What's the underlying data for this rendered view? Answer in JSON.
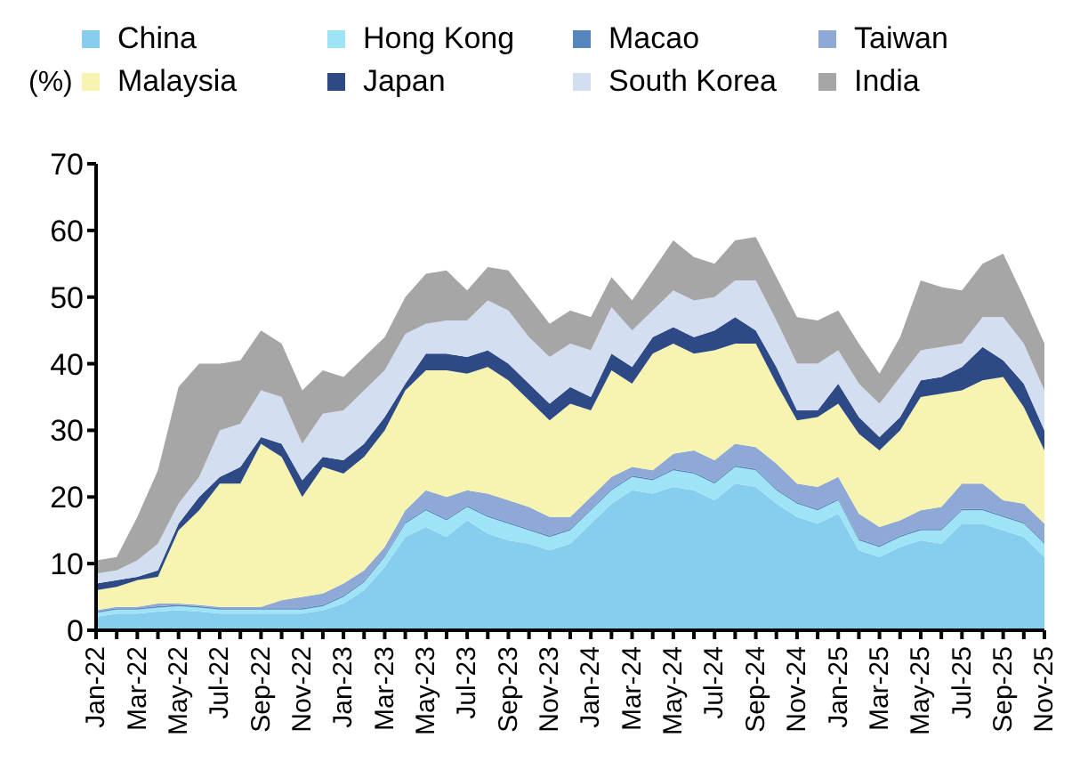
{
  "chart_data": {
    "type": "area",
    "stacked": true,
    "ylabel": "(%)",
    "categories": [
      "Jan-22",
      null,
      "Mar-22",
      null,
      "May-22",
      null,
      "Jul-22",
      null,
      "Sep-22",
      null,
      "Nov-22",
      null,
      "Jan-23",
      null,
      "Mar-23",
      null,
      "May-23",
      null,
      "Jul-23",
      null,
      "Sep-23",
      null,
      "Nov-23",
      null,
      "Jan-24",
      null,
      "Mar-24",
      null,
      "May-24",
      null,
      "Jul-24",
      null,
      "Sep-24",
      null,
      "Nov-24",
      null,
      "Jan-25",
      null,
      "Mar-25",
      null,
      "May-25",
      null,
      "Jul-25",
      null,
      "Sep-25",
      null,
      "Nov-25"
    ],
    "ylim": [
      0,
      70
    ],
    "yticks": [
      0,
      10,
      20,
      30,
      40,
      50,
      60,
      70
    ],
    "grid": false,
    "legend": "top",
    "series": [
      {
        "name": "China",
        "color": "#87ceee",
        "values": [
          2,
          2.5,
          2.5,
          2.8,
          3,
          2.8,
          2.5,
          2.5,
          2.5,
          2.5,
          2.5,
          3,
          4,
          6,
          9.5,
          14,
          15.5,
          14,
          16.5,
          14.5,
          13.5,
          13,
          12,
          13,
          16,
          19,
          21,
          20.5,
          21.5,
          21,
          19.5,
          22,
          21.5,
          19,
          17,
          16,
          17.5,
          12,
          11,
          12.5,
          13.5,
          13,
          16,
          16,
          15,
          14,
          11
        ]
      },
      {
        "name": "Hong Kong",
        "color": "#9fe3f7",
        "values": [
          0.6,
          0.6,
          0.6,
          0.6,
          0.6,
          0.6,
          0.6,
          0.6,
          0.6,
          0.6,
          0.6,
          0.6,
          1,
          1.2,
          1.5,
          2,
          2.5,
          2.5,
          2,
          2.5,
          2.5,
          2,
          2,
          2,
          2,
          2,
          2,
          2,
          2.5,
          2.5,
          2.5,
          2.5,
          2.5,
          2,
          2,
          2,
          2,
          1.5,
          1.5,
          1.5,
          1.5,
          2,
          2,
          2,
          2,
          2,
          2
        ]
      },
      {
        "name": "Macao",
        "color": "#5585bd",
        "values": [
          0.2,
          0.2,
          0.2,
          0.2,
          0.2,
          0.2,
          0.2,
          0.2,
          0.2,
          0.2,
          0.2,
          0.2,
          0.2,
          0.2,
          0.2,
          0.2,
          0.2,
          0.2,
          0.2,
          0.2,
          0.2,
          0.2,
          0.2,
          0.2,
          0.2,
          0.2,
          0.2,
          0.2,
          0.2,
          0.2,
          0.2,
          0.2,
          0.2,
          0.2,
          0.2,
          0.2,
          0.2,
          0.2,
          0.2,
          0.2,
          0.2,
          0.2,
          0.2,
          0.2,
          0.2,
          0.2,
          0.2
        ]
      },
      {
        "name": "Taiwan",
        "color": "#8fa9d6",
        "values": [
          0.2,
          0.2,
          0.2,
          0.4,
          0.2,
          0.2,
          0.2,
          0.2,
          0.2,
          1.2,
          1.7,
          1.7,
          1.8,
          1.6,
          1.3,
          1.8,
          2.8,
          3.3,
          2.3,
          3.3,
          3.3,
          3.3,
          2.8,
          1.8,
          1.8,
          1.8,
          1.3,
          1.3,
          2.3,
          3.3,
          3.3,
          3.3,
          3.3,
          3.8,
          2.8,
          3.3,
          3.3,
          3.8,
          2.8,
          2.3,
          2.8,
          3.3,
          3.8,
          3.8,
          2.3,
          2.8,
          2.8
        ]
      },
      {
        "name": "Malaysia",
        "color": "#f7f3b0",
        "values": [
          3,
          3,
          4,
          4,
          11,
          14.2,
          18.5,
          18.5,
          24.5,
          21.5,
          15,
          19,
          16.5,
          17,
          17.5,
          18,
          18,
          19,
          17.5,
          19,
          18,
          16,
          14.5,
          17,
          13,
          16,
          12.5,
          17.5,
          16.5,
          14.5,
          16.5,
          15,
          15.5,
          12,
          9.5,
          10.5,
          11,
          12,
          11.5,
          13.5,
          17,
          17,
          14,
          15.5,
          18.5,
          14.5,
          11
        ]
      },
      {
        "name": "Japan",
        "color": "#2e4a86",
        "values": [
          1,
          1,
          0.5,
          1,
          1,
          2,
          1,
          2.5,
          1,
          2,
          2.5,
          1.5,
          2,
          2,
          2,
          1,
          2.5,
          2.5,
          2.5,
          2.5,
          2.5,
          2.5,
          2.5,
          2.5,
          2,
          2.5,
          2.5,
          2.5,
          2.5,
          2.5,
          3,
          4,
          2,
          2.5,
          1.5,
          1,
          3,
          2.5,
          2,
          2,
          2.5,
          2.5,
          3.5,
          5,
          2.5,
          3.5,
          3
        ]
      },
      {
        "name": "South Korea",
        "color": "#d3def0",
        "values": [
          1.5,
          1.5,
          2.5,
          4,
          3,
          3,
          7,
          6.5,
          7,
          7,
          5.5,
          6.5,
          7.5,
          8,
          7,
          7.5,
          4.5,
          5,
          5.5,
          7.5,
          8,
          7,
          7,
          6.5,
          7,
          7,
          5.5,
          4,
          5.5,
          5.5,
          5,
          5.5,
          7.5,
          7,
          7,
          7,
          5,
          5,
          5,
          6,
          4.5,
          4.5,
          3.5,
          4.5,
          6.5,
          6,
          6
        ]
      },
      {
        "name": "India",
        "color": "#a6a6a6",
        "values": [
          2,
          2,
          6.5,
          11,
          17.5,
          17,
          10,
          9.5,
          9,
          8,
          8,
          6.5,
          5,
          5,
          5,
          5.5,
          7.5,
          7.5,
          4.5,
          5,
          6,
          6,
          5,
          5,
          5,
          4.5,
          4.5,
          6,
          7.5,
          6.5,
          5,
          6,
          6.5,
          6.5,
          7,
          6.5,
          6,
          6,
          4.5,
          6,
          10.5,
          9,
          8,
          8,
          9.5,
          7,
          7
        ]
      }
    ]
  }
}
